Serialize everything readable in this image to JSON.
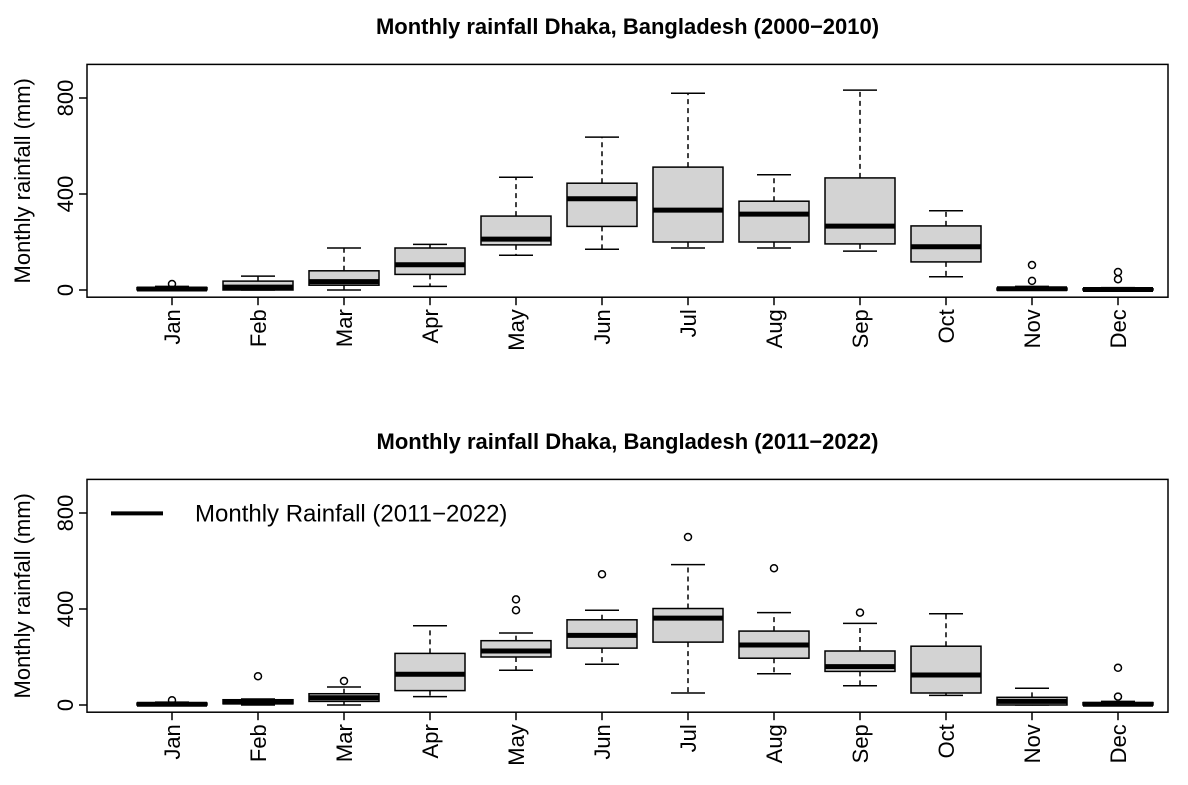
{
  "chart_data": [
    {
      "type": "box",
      "title": "Monthly rainfall Dhaka, Bangladesh (2000−2010)",
      "ylabel": "Monthly rainfall (mm)",
      "categories": [
        "Jan",
        "Feb",
        "Mar",
        "Apr",
        "May",
        "Jun",
        "Jul",
        "Aug",
        "Sep",
        "Oct",
        "Nov",
        "Dec"
      ],
      "color": "#d3d3d3",
      "min": [
        0,
        0,
        0,
        15,
        145,
        170,
        175,
        175,
        162,
        55,
        0,
        0
      ],
      "q1": [
        1,
        0,
        20,
        65,
        188,
        265,
        200,
        200,
        192,
        117,
        0,
        0
      ],
      "median": [
        4,
        12,
        35,
        105,
        212,
        380,
        333,
        316,
        266,
        180,
        5,
        2
      ],
      "q3": [
        10,
        37,
        80,
        175,
        308,
        445,
        512,
        370,
        467,
        267,
        8,
        5
      ],
      "max": [
        15,
        58,
        175,
        190,
        470,
        637,
        820,
        480,
        833,
        330,
        15,
        10
      ],
      "outliers": [
        [
          25
        ],
        [],
        [],
        [],
        [],
        [],
        [],
        [],
        [],
        [],
        [
          104,
          38
        ],
        [
          75,
          45
        ]
      ],
      "ylim": [
        -30,
        940
      ],
      "yticks": [
        0,
        400,
        800
      ]
    },
    {
      "type": "box",
      "title": "Monthly rainfall Dhaka, Bangladesh (2011−2022)",
      "ylabel": "Monthly rainfall (mm)",
      "categories": [
        "Jan",
        "Feb",
        "Mar",
        "Apr",
        "May",
        "Jun",
        "Jul",
        "Aug",
        "Sep",
        "Oct",
        "Nov",
        "Dec"
      ],
      "color": "#d3d3d3",
      "min": [
        0,
        0,
        0,
        35,
        145,
        170,
        50,
        130,
        80,
        40,
        0,
        0
      ],
      "q1": [
        0,
        5,
        15,
        60,
        200,
        237,
        262,
        195,
        140,
        50,
        0,
        0
      ],
      "median": [
        3,
        12,
        30,
        128,
        225,
        290,
        362,
        250,
        160,
        125,
        15,
        3
      ],
      "q3": [
        8,
        22,
        47,
        215,
        268,
        355,
        402,
        308,
        225,
        245,
        32,
        10
      ],
      "max": [
        12,
        25,
        75,
        330,
        300,
        395,
        585,
        385,
        340,
        380,
        70,
        15
      ],
      "outliers": [
        [
          20
        ],
        [
          120
        ],
        [
          100
        ],
        [],
        [
          395,
          440
        ],
        [
          545
        ],
        [
          700
        ],
        [
          570
        ],
        [
          385
        ],
        [],
        [],
        [
          155,
          35
        ]
      ],
      "ylim": [
        -30,
        940
      ],
      "yticks": [
        0,
        400,
        800
      ],
      "legend": "Monthly Rainfall (2011−2022)",
      "legend_position": "top-left"
    }
  ]
}
